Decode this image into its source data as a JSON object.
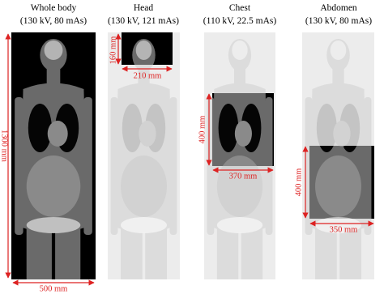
{
  "panels": [
    {
      "title": "Whole body",
      "params": "(130 kV, 80 mAs)",
      "height": "1300 mm",
      "width": "500 mm"
    },
    {
      "title": "Head",
      "params": "(130 kV, 121 mAs)",
      "height": "160 mm",
      "width": "210 mm"
    },
    {
      "title": "Chest",
      "params": "(110 kV, 22.5 mAs)",
      "height": "400 mm",
      "width": "370 mm"
    },
    {
      "title": "Abdomen",
      "params": "(130 kV, 80 mAs)",
      "height": "400 mm",
      "width": "350 mm"
    }
  ]
}
